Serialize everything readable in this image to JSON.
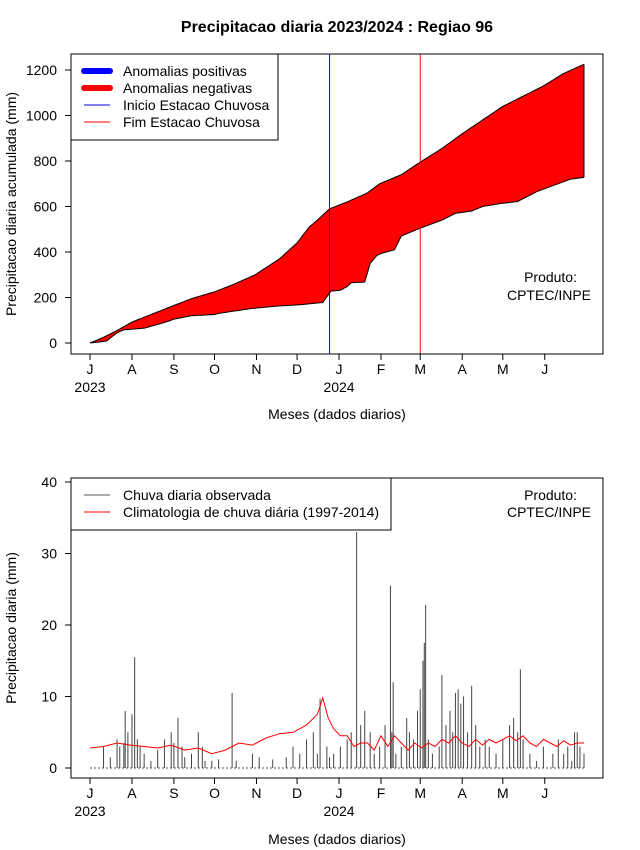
{
  "chart_data": [
    {
      "type": "area",
      "title": "Precipitacao diaria 2023/2024 : Regiao 96",
      "ylabel": "Precipitacao diaria acumulada (mm)",
      "xlabel": "Meses (dados diarios)",
      "ylim": [
        0,
        1300
      ],
      "yticks": [
        "0",
        "200",
        "400",
        "600",
        "800",
        "1000",
        "1200"
      ],
      "xaxis": {
        "months": [
          "J",
          "A",
          "S",
          "O",
          "N",
          "D",
          "J",
          "F",
          "M",
          "A",
          "M",
          "J"
        ],
        "years": [
          "2023",
          "2024"
        ]
      },
      "legend": {
        "position": "top-left",
        "entries": [
          {
            "label": "Anomalias positivas",
            "color": "#0000ff",
            "style": "thick"
          },
          {
            "label": "Anomalias negativas",
            "color": "#ff0000",
            "style": "thick"
          },
          {
            "label": "Inicio Estacao Chuvosa",
            "color": "#0000ff",
            "style": "thin"
          },
          {
            "label": "Fim Estacao Chuvosa",
            "color": "#ff0000",
            "style": "thin"
          }
        ]
      },
      "annotation": [
        "Produto:",
        "CPTEC/INPE"
      ],
      "inicio_estacao_chuvosa_day": 177,
      "fim_estacao_chuvosa_day": 244,
      "series": [
        {
          "name": "Climatologia acumulada",
          "points": [
            [
              0,
              0
            ],
            [
              10,
              25
            ],
            [
              20,
              55
            ],
            [
              31,
              92
            ],
            [
              45,
              125
            ],
            [
              62,
              165
            ],
            [
              75,
              195
            ],
            [
              92,
              225
            ],
            [
              105,
              255
            ],
            [
              122,
              300
            ],
            [
              140,
              370
            ],
            [
              153,
              440
            ],
            [
              162,
              510
            ],
            [
              168,
              540
            ],
            [
              177,
              590
            ],
            [
              190,
              620
            ],
            [
              205,
              660
            ],
            [
              214,
              700
            ],
            [
              230,
              740
            ],
            [
              244,
              795
            ],
            [
              260,
              855
            ],
            [
              275,
              920
            ],
            [
              290,
              980
            ],
            [
              305,
              1040
            ],
            [
              320,
              1085
            ],
            [
              335,
              1130
            ],
            [
              350,
              1185
            ],
            [
              365,
              1225
            ]
          ]
        },
        {
          "name": "Precipitacao observada acumulada",
          "points": [
            [
              0,
              0
            ],
            [
              12,
              8
            ],
            [
              20,
              45
            ],
            [
              25,
              58
            ],
            [
              40,
              65
            ],
            [
              55,
              90
            ],
            [
              62,
              105
            ],
            [
              75,
              120
            ],
            [
              92,
              125
            ],
            [
              95,
              130
            ],
            [
              106,
              140
            ],
            [
              120,
              152
            ],
            [
              140,
              163
            ],
            [
              155,
              168
            ],
            [
              172,
              178
            ],
            [
              178,
              228
            ],
            [
              185,
              232
            ],
            [
              190,
              248
            ],
            [
              193,
              265
            ],
            [
              203,
              268
            ],
            [
              207,
              350
            ],
            [
              212,
              385
            ],
            [
              216,
              395
            ],
            [
              225,
              410
            ],
            [
              230,
              470
            ],
            [
              240,
              495
            ],
            [
              244,
              505
            ],
            [
              260,
              540
            ],
            [
              270,
              570
            ],
            [
              282,
              580
            ],
            [
              290,
              600
            ],
            [
              302,
              612
            ],
            [
              316,
              622
            ],
            [
              330,
              665
            ],
            [
              355,
              720
            ],
            [
              365,
              728
            ]
          ]
        }
      ]
    },
    {
      "type": "bar",
      "ylabel": "Precipitacao diaria (mm)",
      "xlabel": "Meses (dados diarios)",
      "ylim": [
        0,
        40
      ],
      "yticks": [
        "0",
        "10",
        "20",
        "30",
        "40"
      ],
      "xaxis": {
        "months": [
          "J",
          "A",
          "S",
          "O",
          "N",
          "D",
          "J",
          "F",
          "M",
          "A",
          "M",
          "J"
        ],
        "years": [
          "2023",
          "2024"
        ]
      },
      "legend": {
        "position": "top-left",
        "entries": [
          {
            "label": "Chuva diaria observada",
            "color": "#555555"
          },
          {
            "label": "Climatologia de chuva diária (1997-2014)",
            "color": "#ff0000"
          }
        ]
      },
      "annotation": [
        "Produto:",
        "CPTEC/INPE"
      ],
      "series": [
        {
          "name": "Chuva diaria observada",
          "spikes": [
            [
              10,
              3
            ],
            [
              15,
              1.5
            ],
            [
              20,
              4
            ],
            [
              22,
              3
            ],
            [
              25,
              3.5
            ],
            [
              26,
              8
            ],
            [
              28,
              5
            ],
            [
              31,
              7.5
            ],
            [
              33,
              15.5
            ],
            [
              35,
              4
            ],
            [
              37,
              3
            ],
            [
              40,
              2
            ],
            [
              45,
              1
            ],
            [
              50,
              2.5
            ],
            [
              55,
              4
            ],
            [
              60,
              5
            ],
            [
              62,
              3.5
            ],
            [
              65,
              7
            ],
            [
              68,
              3
            ],
            [
              70,
              1.5
            ],
            [
              75,
              2
            ],
            [
              80,
              5
            ],
            [
              83,
              3
            ],
            [
              85,
              1
            ],
            [
              90,
              1
            ],
            [
              95,
              1.2
            ],
            [
              105,
              10.5
            ],
            [
              108,
              1
            ],
            [
              120,
              2
            ],
            [
              125,
              1.5
            ],
            [
              135,
              1.2
            ],
            [
              145,
              1.5
            ],
            [
              150,
              3
            ],
            [
              155,
              2
            ],
            [
              160,
              4
            ],
            [
              165,
              5
            ],
            [
              168,
              2
            ],
            [
              170,
              9.7
            ],
            [
              175,
              3
            ],
            [
              177,
              1.5
            ],
            [
              180,
              2
            ],
            [
              185,
              3
            ],
            [
              190,
              4
            ],
            [
              193,
              5
            ],
            [
              197,
              33
            ],
            [
              200,
              6
            ],
            [
              203,
              8
            ],
            [
              207,
              5
            ],
            [
              210,
              2
            ],
            [
              214,
              3
            ],
            [
              218,
              6
            ],
            [
              222,
              25.5
            ],
            [
              223,
              5
            ],
            [
              224,
              12
            ],
            [
              226,
              2
            ],
            [
              230,
              3
            ],
            [
              234,
              7
            ],
            [
              236,
              5
            ],
            [
              239,
              4
            ],
            [
              242,
              8
            ],
            [
              244,
              11
            ],
            [
              246,
              15
            ],
            [
              247,
              17.5
            ],
            [
              248,
              22.8
            ],
            [
              250,
              4
            ],
            [
              253,
              2
            ],
            [
              258,
              3
            ],
            [
              260,
              13
            ],
            [
              263,
              6
            ],
            [
              266,
              8
            ],
            [
              268,
              5
            ],
            [
              270,
              10.5
            ],
            [
              272,
              11
            ],
            [
              274,
              9
            ],
            [
              276,
              10
            ],
            [
              279,
              5
            ],
            [
              282,
              11.5
            ],
            [
              285,
              6
            ],
            [
              288,
              3
            ],
            [
              292,
              4
            ],
            [
              295,
              3
            ],
            [
              300,
              2
            ],
            [
              305,
              4
            ],
            [
              310,
              6
            ],
            [
              313,
              7
            ],
            [
              316,
              5
            ],
            [
              318,
              13.8
            ],
            [
              320,
              4
            ],
            [
              325,
              2
            ],
            [
              330,
              1
            ],
            [
              335,
              3
            ],
            [
              342,
              2
            ],
            [
              346,
              4
            ],
            [
              350,
              2
            ],
            [
              353,
              3
            ],
            [
              356,
              1
            ],
            [
              358,
              5
            ],
            [
              360,
              5
            ],
            [
              362,
              3
            ],
            [
              365,
              2
            ]
          ]
        },
        {
          "name": "Climatologia de chuva diária (1997-2014)",
          "points": [
            [
              0,
              2.8
            ],
            [
              10,
              3.0
            ],
            [
              20,
              3.5
            ],
            [
              30,
              3.2
            ],
            [
              40,
              3.0
            ],
            [
              50,
              2.8
            ],
            [
              60,
              3.2
            ],
            [
              70,
              2.5
            ],
            [
              80,
              2.8
            ],
            [
              90,
              2.0
            ],
            [
              100,
              2.5
            ],
            [
              110,
              3.5
            ],
            [
              120,
              3.2
            ],
            [
              130,
              4.2
            ],
            [
              140,
              4.8
            ],
            [
              150,
              5.0
            ],
            [
              160,
              6.0
            ],
            [
              168,
              7.5
            ],
            [
              172,
              9.8
            ],
            [
              176,
              7.0
            ],
            [
              180,
              5.5
            ],
            [
              185,
              4.5
            ],
            [
              190,
              4.5
            ],
            [
              195,
              3.0
            ],
            [
              200,
              3.5
            ],
            [
              205,
              3.5
            ],
            [
              210,
              2.5
            ],
            [
              215,
              4.5
            ],
            [
              220,
              3.0
            ],
            [
              225,
              4.5
            ],
            [
              230,
              3.5
            ],
            [
              235,
              2.5
            ],
            [
              240,
              3.5
            ],
            [
              245,
              2.8
            ],
            [
              250,
              3.5
            ],
            [
              255,
              3.0
            ],
            [
              260,
              4.0
            ],
            [
              265,
              3.5
            ],
            [
              270,
              4.5
            ],
            [
              275,
              3.5
            ],
            [
              280,
              3.0
            ],
            [
              285,
              4.0
            ],
            [
              290,
              3.2
            ],
            [
              295,
              4.0
            ],
            [
              300,
              3.5
            ],
            [
              305,
              4.0
            ],
            [
              310,
              4.5
            ],
            [
              315,
              3.8
            ],
            [
              320,
              4.5
            ],
            [
              325,
              3.5
            ],
            [
              330,
              3.0
            ],
            [
              335,
              4.0
            ],
            [
              340,
              3.5
            ],
            [
              345,
              3.0
            ],
            [
              350,
              3.8
            ],
            [
              355,
              3.2
            ],
            [
              360,
              3.5
            ],
            [
              365,
              3.5
            ]
          ]
        }
      ]
    }
  ]
}
